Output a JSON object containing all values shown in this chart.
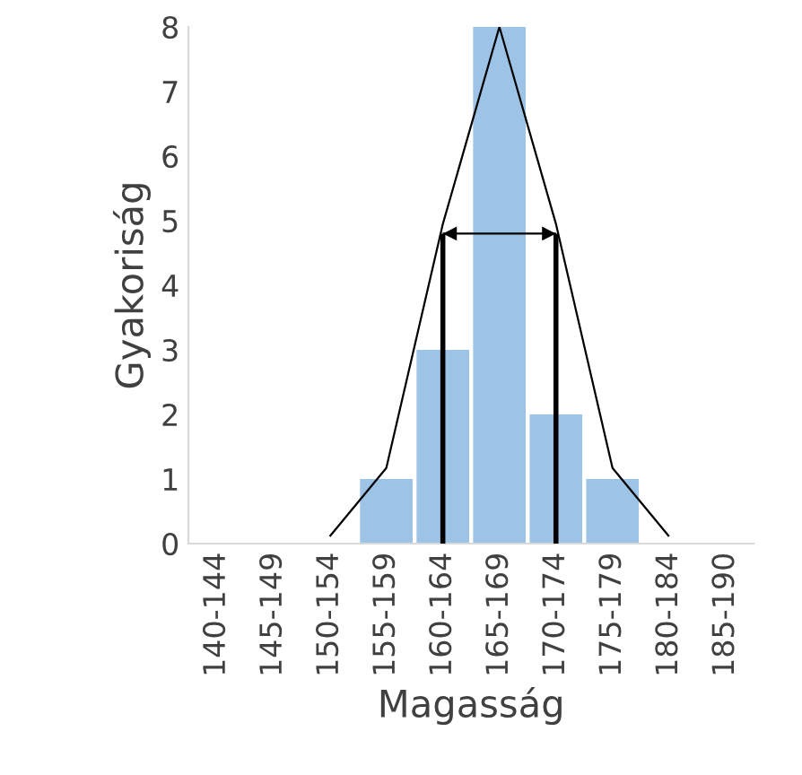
{
  "chart_data": {
    "type": "bar",
    "xlabel": "Magasság",
    "ylabel": "Gyakoriság",
    "categories": [
      "140-144",
      "145-149",
      "150-154",
      "155-159",
      "160-164",
      "165-169",
      "170-174",
      "175-179",
      "180-184",
      "185-190"
    ],
    "ylim": [
      0,
      8
    ],
    "yticks": [
      0,
      1,
      2,
      3,
      4,
      5,
      6,
      7,
      8
    ],
    "grid": false,
    "legend": false,
    "series": [
      {
        "color": "#9dc3e6",
        "values": [
          0,
          0,
          0,
          1,
          3,
          8,
          2,
          1,
          0,
          0
        ]
      },
      {
        "type": "line",
        "color": "#000000",
        "values": [
          null,
          null,
          0.11,
          1.17,
          4.95,
          8,
          4.95,
          1.17,
          0.11,
          null
        ]
      },
      {
        "type": "line",
        "color": "#000000",
        "x": [
          "160-164",
          "160-164"
        ],
        "values": [
          0,
          4.8
        ]
      },
      {
        "type": "line",
        "color": "#000000",
        "x": [
          "170-174",
          "170-174"
        ],
        "values": [
          0,
          4.8
        ]
      },
      {
        "type": "line",
        "color": "#000000",
        "x": [
          "160-164",
          "170-174"
        ],
        "values": [
          4.8,
          4.8
        ]
      }
    ]
  }
}
